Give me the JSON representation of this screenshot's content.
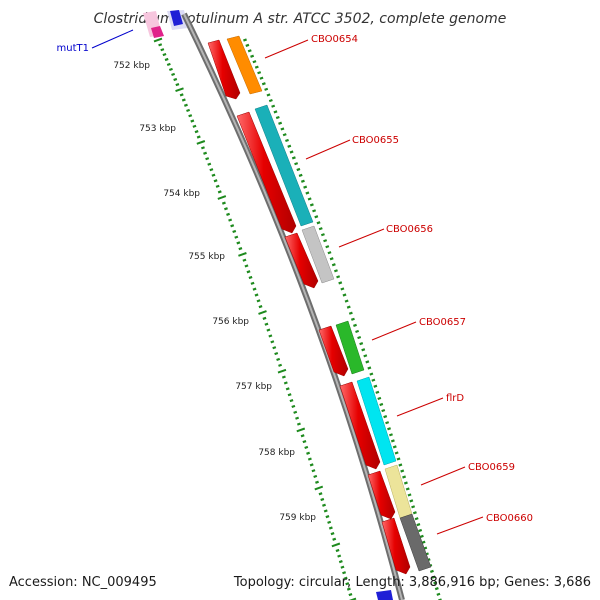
{
  "title": "Clostridium botulinum A str. ATCC 3502, complete genome",
  "footer": {
    "accession": "Accession: NC_009495",
    "summary": "Topology: circular; Length: 3,886,916 bp; Genes: 3,686"
  },
  "colors": {
    "backbone": "#8c8c8c",
    "tick": "#1e8a1e",
    "cds": "#e60000",
    "label_red": "#cc0000",
    "label_blue": "#0000cc"
  },
  "ticks": [
    "752 kbp",
    "753 kbp",
    "754 kbp",
    "755 kbp",
    "756 kbp",
    "757 kbp",
    "758 kbp",
    "759 kbp"
  ],
  "gene_labels": [
    {
      "name": "mutT1",
      "color": "#0000cc"
    },
    {
      "name": "CBO0654",
      "color": "#cc0000"
    },
    {
      "name": "CBO0655",
      "color": "#cc0000"
    },
    {
      "name": "CBO0656",
      "color": "#cc0000"
    },
    {
      "name": "CBO0657",
      "color": "#cc0000"
    },
    {
      "name": "flrD",
      "color": "#cc0000"
    },
    {
      "name": "CBO0659",
      "color": "#cc0000"
    },
    {
      "name": "CBO0660",
      "color": "#cc0000"
    }
  ],
  "features": [
    {
      "gene": "CBO0654",
      "cds_color": "#e60000",
      "cog_color": "#ff8c00"
    },
    {
      "gene": "CBO0655",
      "cds_color": "#e60000",
      "cog_color": "#1ab0b8"
    },
    {
      "gene": "CBO0656",
      "cds_color": "#e60000",
      "cog_color": "#c4c4c4"
    },
    {
      "gene": "CBO0657",
      "cds_color": "#e60000",
      "cog_color": "#2ab82a"
    },
    {
      "gene": "flrD",
      "cds_color": "#e60000",
      "cog_color": "#00e5f0"
    },
    {
      "gene": "CBO0659",
      "cds_color": "#e60000",
      "cog_color": "#ece49a"
    },
    {
      "gene": "CBO0660",
      "cds_color": "#e60000",
      "cog_color": "#6a6a6a"
    }
  ]
}
